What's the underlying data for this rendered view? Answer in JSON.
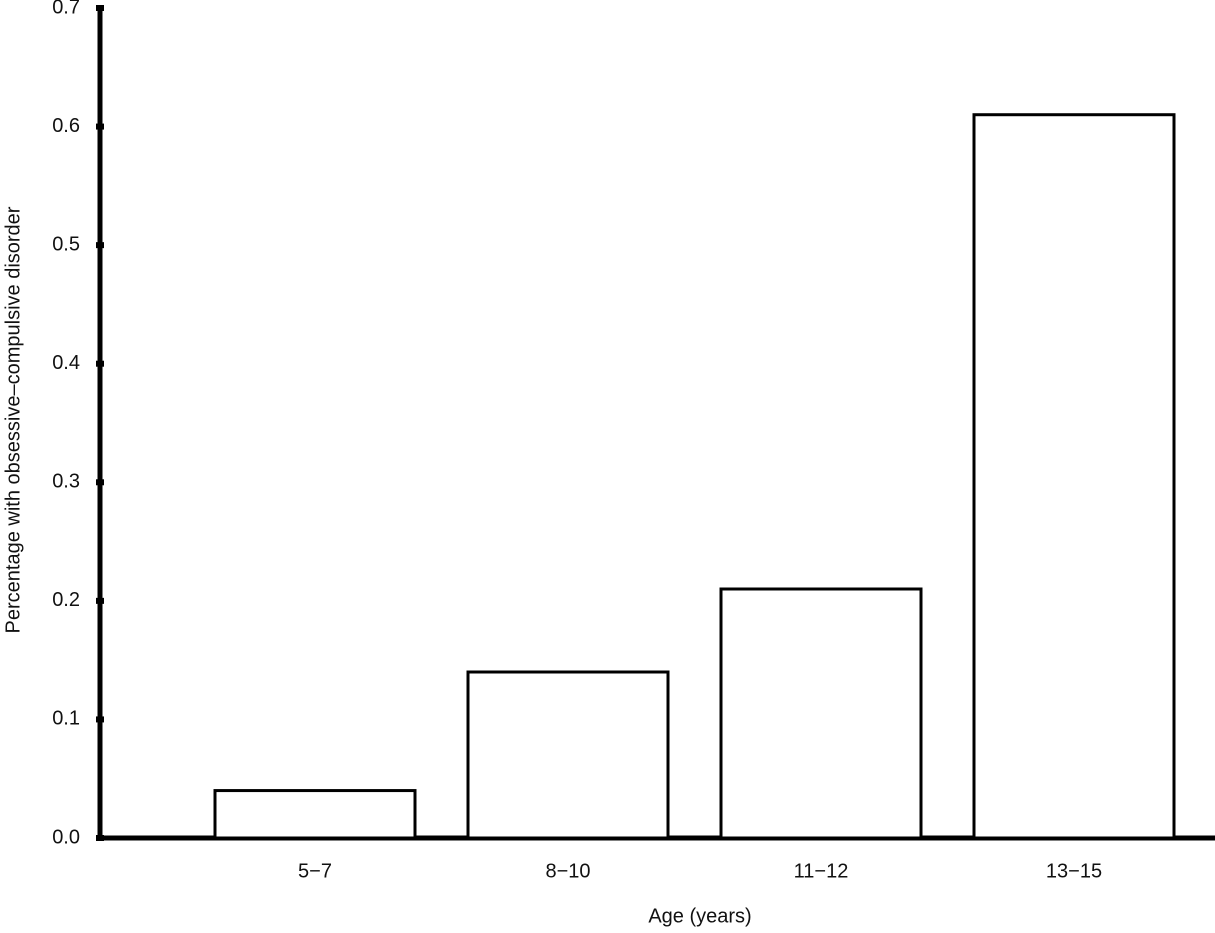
{
  "chart_data": {
    "type": "bar",
    "x_label": "Age (years)",
    "y_label": "Percentage with obsessive–compulsive disorder",
    "categories": [
      "5−7",
      "8−10",
      "11−12",
      "13−15"
    ],
    "values": [
      0.04,
      0.14,
      0.21,
      0.61
    ],
    "color": "#ffffff",
    "ylim": [
      0,
      0.7
    ],
    "yticks": [
      {
        "value": 0,
        "label": "0.0"
      },
      0.1,
      0.2,
      0.3,
      0.4,
      0.5,
      0.6,
      0.7
    ],
    "grid": false
  }
}
